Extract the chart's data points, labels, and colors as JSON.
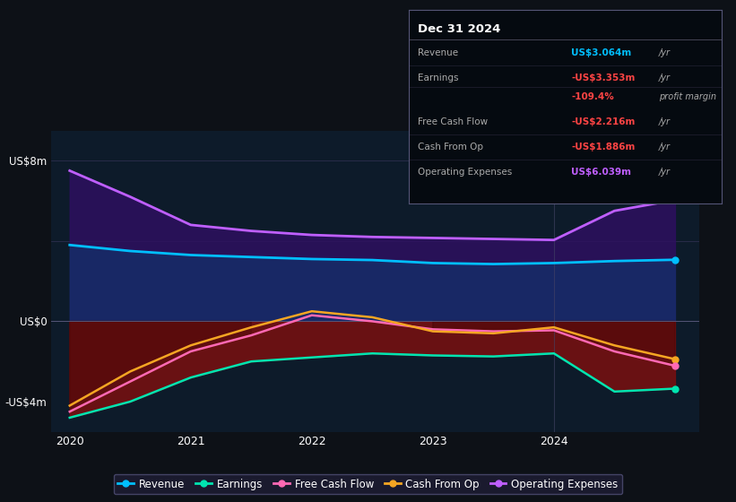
{
  "bg_color": "#0d1117",
  "plot_bg_color": "#0d1b2a",
  "x_years": [
    2020,
    2020.5,
    2021,
    2021.5,
    2022,
    2022.5,
    2023,
    2023.5,
    2024,
    2024.5,
    2025
  ],
  "revenue": [
    3.8,
    3.5,
    3.3,
    3.2,
    3.1,
    3.05,
    2.9,
    2.85,
    2.9,
    3.0,
    3.064
  ],
  "op_expenses": [
    7.5,
    6.2,
    4.8,
    4.5,
    4.3,
    4.2,
    4.15,
    4.1,
    4.05,
    5.5,
    6.039
  ],
  "earnings": [
    -4.8,
    -4.0,
    -2.8,
    -2.0,
    -1.8,
    -1.6,
    -1.7,
    -1.75,
    -1.6,
    -3.5,
    -3.353
  ],
  "free_cash_flow": [
    -4.5,
    -3.0,
    -1.5,
    -0.7,
    0.3,
    0.0,
    -0.4,
    -0.5,
    -0.45,
    -1.5,
    -2.216
  ],
  "cash_from_op": [
    -4.2,
    -2.5,
    -1.2,
    -0.3,
    0.5,
    0.2,
    -0.5,
    -0.6,
    -0.3,
    -1.2,
    -1.886
  ],
  "ylim": [
    -5.5,
    9.5
  ],
  "yticks": [
    -4,
    0,
    8
  ],
  "ytick_labels": [
    "-US$4m",
    "US$0",
    "US$8m"
  ],
  "xtick_years": [
    2020,
    2021,
    2022,
    2023,
    2024
  ],
  "revenue_color": "#00bfff",
  "earnings_color": "#00e5b0",
  "fcf_color": "#ff69b4",
  "cashop_color": "#f5a623",
  "opex_color": "#bf5fff",
  "highlight_x": 2024.0,
  "table_title": "Dec 31 2024",
  "legend_items": [
    {
      "label": "Revenue",
      "color": "#00bfff"
    },
    {
      "label": "Earnings",
      "color": "#00e5b0"
    },
    {
      "label": "Free Cash Flow",
      "color": "#ff69b4"
    },
    {
      "label": "Cash From Op",
      "color": "#f5a623"
    },
    {
      "label": "Operating Expenses",
      "color": "#bf5fff"
    }
  ]
}
